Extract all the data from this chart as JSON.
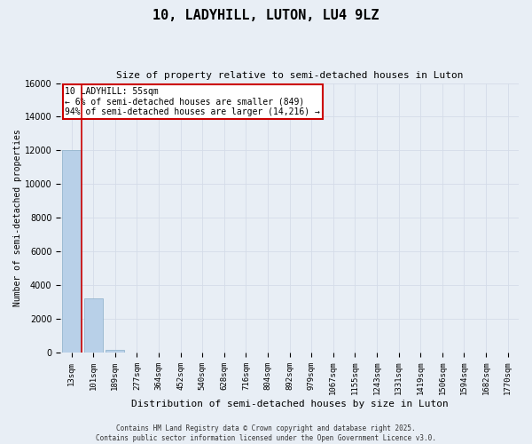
{
  "title": "10, LADYHILL, LUTON, LU4 9LZ",
  "subtitle": "Size of property relative to semi-detached houses in Luton",
  "xlabel": "Distribution of semi-detached houses by size in Luton",
  "ylabel": "Number of semi-detached properties",
  "footer_line1": "Contains HM Land Registry data © Crown copyright and database right 2025.",
  "footer_line2": "Contains public sector information licensed under the Open Government Licence v3.0.",
  "categories": [
    "13sqm",
    "101sqm",
    "189sqm",
    "277sqm",
    "364sqm",
    "452sqm",
    "540sqm",
    "628sqm",
    "716sqm",
    "804sqm",
    "892sqm",
    "979sqm",
    "1067sqm",
    "1155sqm",
    "1243sqm",
    "1331sqm",
    "1419sqm",
    "1506sqm",
    "1594sqm",
    "1682sqm",
    "1770sqm"
  ],
  "values": [
    12000,
    3200,
    180,
    0,
    0,
    0,
    0,
    0,
    0,
    0,
    0,
    0,
    0,
    0,
    0,
    0,
    0,
    0,
    0,
    0,
    0
  ],
  "bar_color": "#b8d0e8",
  "bar_edge_color": "#8aaec8",
  "highlight_color": "#cc0000",
  "ylim": [
    0,
    16000
  ],
  "yticks": [
    0,
    2000,
    4000,
    6000,
    8000,
    10000,
    12000,
    14000,
    16000
  ],
  "annotation_title": "10 LADYHILL: 55sqm",
  "annotation_line1": "← 6% of semi-detached houses are smaller (849)",
  "annotation_line2": "94% of semi-detached houses are larger (14,216) →",
  "annotation_box_color": "#ffffff",
  "annotation_box_edge_color": "#cc0000",
  "grid_color": "#d4dce8",
  "background_color": "#e8eef5",
  "vline_position": 0.48
}
